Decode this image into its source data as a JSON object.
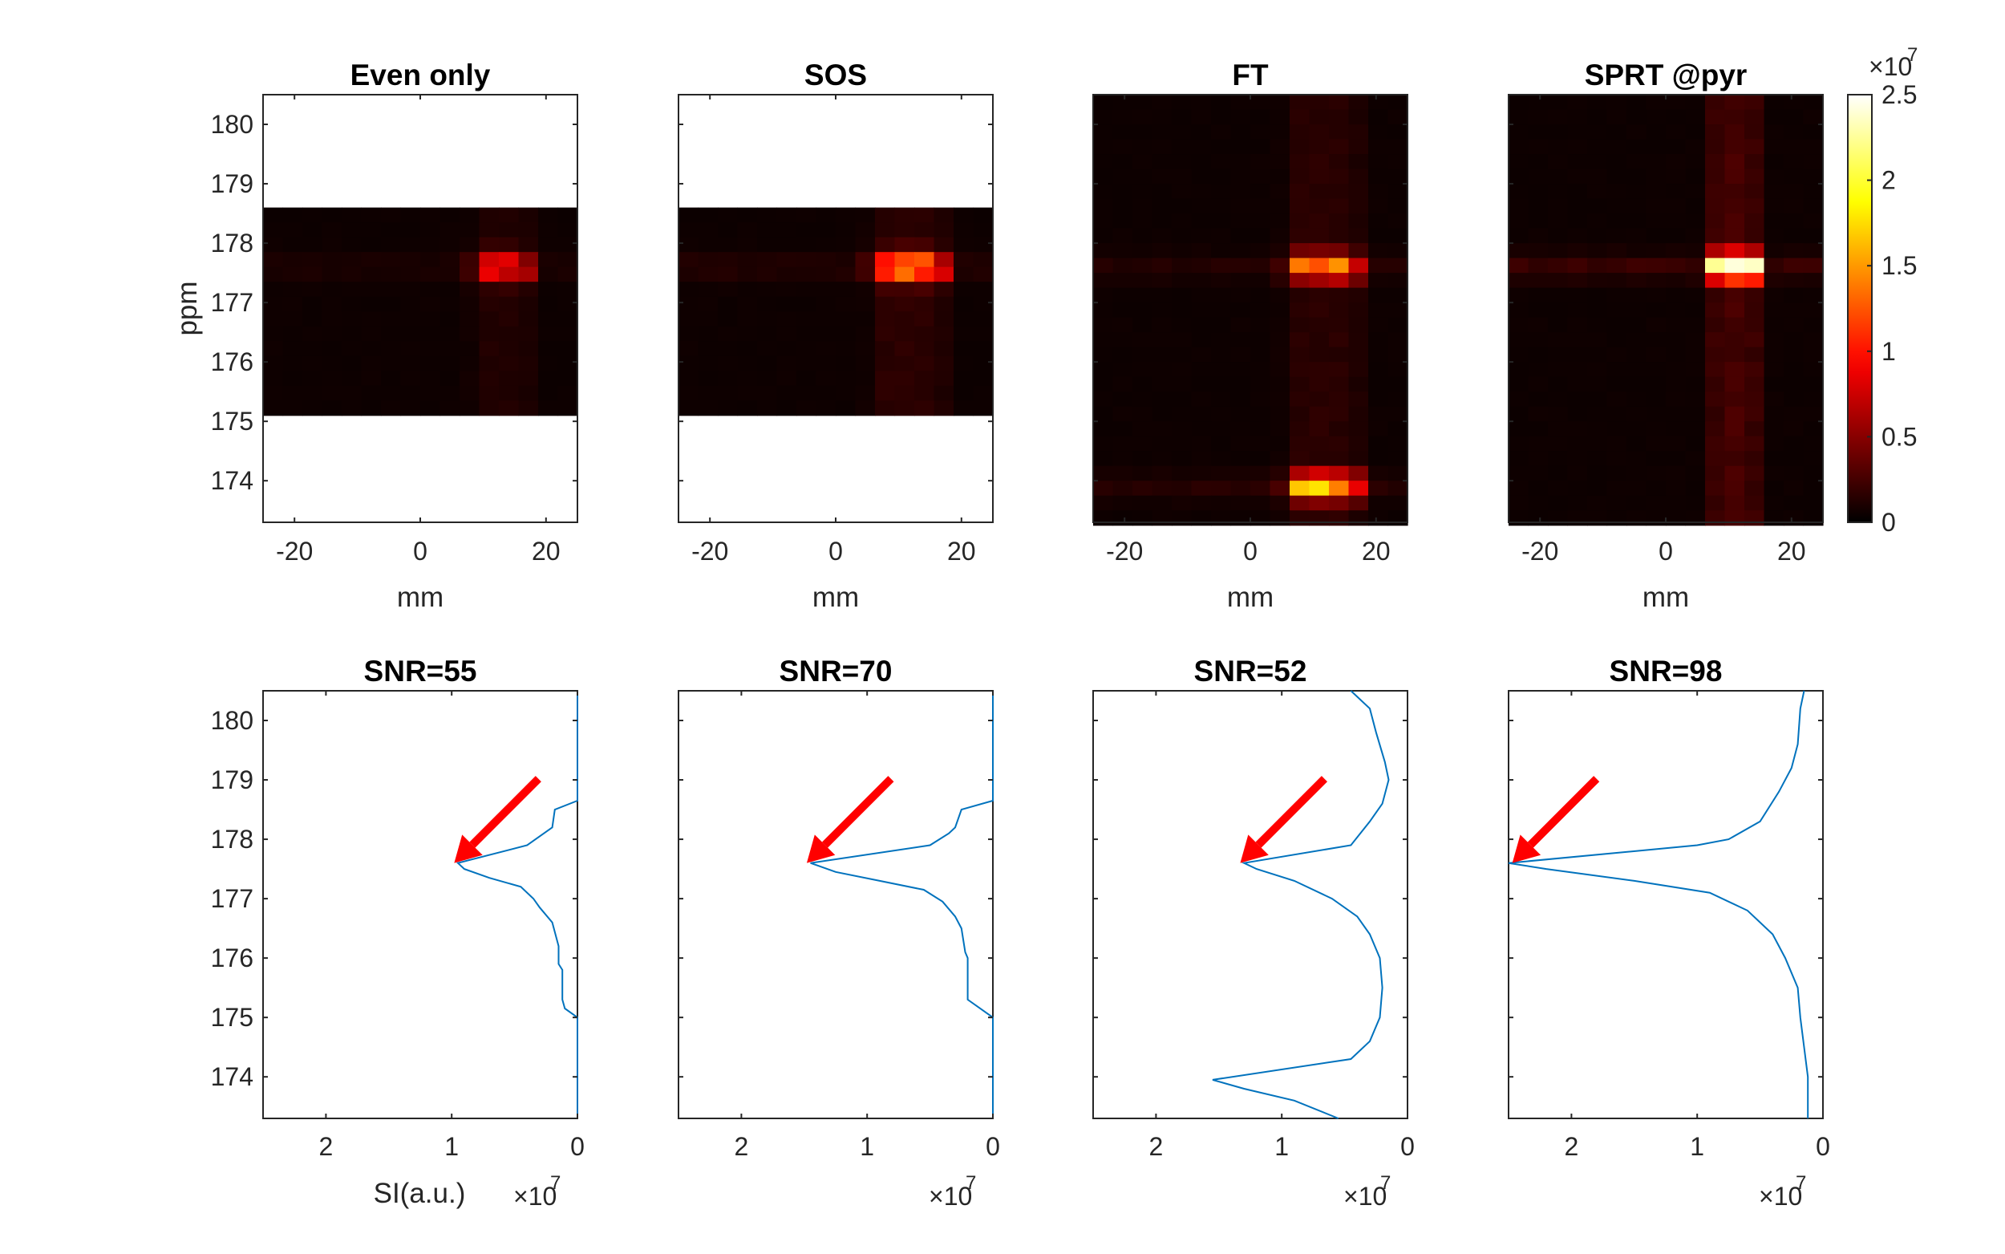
{
  "chart_data": [
    {
      "type": "heatmap",
      "title": "Even only",
      "xlabel": "mm",
      "ylabel": "ppm",
      "xlim": [
        -25,
        25
      ],
      "ylim": [
        173.3,
        180.5
      ],
      "x_ticks": [
        "-20",
        "0",
        "20"
      ],
      "y_ticks": [
        "174",
        "175",
        "176",
        "177",
        "178",
        "179",
        "180"
      ],
      "data_ppm_range": [
        175.1,
        178.6
      ],
      "peak": {
        "x_mm": [
          10,
          16
        ],
        "ppm": 177.6,
        "value": 9000000
      },
      "colormap": "hot"
    },
    {
      "type": "heatmap",
      "title": "SOS",
      "xlabel": "mm",
      "xlim": [
        -25,
        25
      ],
      "ylim": [
        173.3,
        180.5
      ],
      "x_ticks": [
        "-20",
        "0",
        "20"
      ],
      "data_ppm_range": [
        175.1,
        178.6
      ],
      "peak": {
        "x_mm": [
          7,
          16
        ],
        "ppm": 177.6,
        "value": 14000000
      },
      "colormap": "hot"
    },
    {
      "type": "heatmap",
      "title": "FT",
      "xlabel": "mm",
      "xlim": [
        -25,
        25
      ],
      "ylim": [
        173.3,
        180.5
      ],
      "x_ticks": [
        "-20",
        "0",
        "20"
      ],
      "data_ppm_range": [
        173.3,
        180.5
      ],
      "peak": {
        "x_mm": [
          7,
          16
        ],
        "ppm": 177.6,
        "value": 12500000
      },
      "secondary_peak": {
        "ppm": 173.9,
        "value": 15000000
      },
      "colormap": "hot"
    },
    {
      "type": "heatmap",
      "title": "SPRT @pyr",
      "xlabel": "mm",
      "xlim": [
        -25,
        25
      ],
      "ylim": [
        173.3,
        180.5
      ],
      "x_ticks": [
        "-20",
        "0",
        "20"
      ],
      "data_ppm_range": [
        173.3,
        180.5
      ],
      "peak": {
        "x_mm": [
          9,
          13
        ],
        "ppm": 177.6,
        "value": 25000000
      },
      "colormap": "hot"
    },
    {
      "type": "colorbar",
      "clim": [
        0,
        25000000
      ],
      "ticks": [
        "0",
        "0.5",
        "1",
        "1.5",
        "2",
        "2.5"
      ],
      "exponent_base": "×10",
      "exponent_power": "7"
    },
    {
      "type": "line",
      "title": "SNR=55",
      "xlabel": "SI(a.u.)",
      "ylabel": "",
      "x_reversed": true,
      "xlim": [
        0,
        2.5
      ],
      "ylim": [
        173.3,
        180.5
      ],
      "x_ticks": [
        "2",
        "1",
        "0"
      ],
      "y_ticks": [
        "174",
        "175",
        "176",
        "177",
        "178",
        "179",
        "180"
      ],
      "x_exponent": "×10",
      "x_exponent_power": "7",
      "points": [
        [
          0,
          180.5
        ],
        [
          0,
          178.65
        ],
        [
          0.18,
          178.5
        ],
        [
          0.2,
          178.2
        ],
        [
          0.4,
          177.9
        ],
        [
          0.95,
          177.6
        ],
        [
          0.9,
          177.5
        ],
        [
          0.7,
          177.35
        ],
        [
          0.45,
          177.2
        ],
        [
          0.35,
          177.0
        ],
        [
          0.3,
          176.85
        ],
        [
          0.2,
          176.6
        ],
        [
          0.15,
          176.2
        ],
        [
          0.15,
          175.9
        ],
        [
          0.12,
          175.8
        ],
        [
          0.12,
          175.3
        ],
        [
          0.1,
          175.15
        ],
        [
          0,
          175.0
        ],
        [
          0,
          173.3
        ]
      ],
      "arrow_target": {
        "si": 0.98,
        "ppm": 177.6
      }
    },
    {
      "type": "line",
      "title": "SNR=70",
      "xlabel": "",
      "x_reversed": true,
      "xlim": [
        0,
        2.5
      ],
      "ylim": [
        173.3,
        180.5
      ],
      "x_ticks": [
        "2",
        "1",
        "0"
      ],
      "x_exponent": "×10",
      "x_exponent_power": "7",
      "points": [
        [
          0,
          180.5
        ],
        [
          0,
          178.65
        ],
        [
          0.25,
          178.5
        ],
        [
          0.3,
          178.2
        ],
        [
          0.35,
          178.1
        ],
        [
          0.5,
          177.9
        ],
        [
          1.45,
          177.6
        ],
        [
          1.25,
          177.45
        ],
        [
          0.9,
          177.3
        ],
        [
          0.55,
          177.15
        ],
        [
          0.4,
          176.95
        ],
        [
          0.3,
          176.7
        ],
        [
          0.25,
          176.5
        ],
        [
          0.22,
          176.1
        ],
        [
          0.2,
          176.0
        ],
        [
          0.2,
          175.3
        ],
        [
          0,
          175.0
        ],
        [
          0,
          173.3
        ]
      ],
      "arrow_target": {
        "si": 1.48,
        "ppm": 177.6
      }
    },
    {
      "type": "line",
      "title": "SNR=52",
      "xlabel": "",
      "x_reversed": true,
      "xlim": [
        0,
        2.5
      ],
      "ylim": [
        173.3,
        180.5
      ],
      "x_ticks": [
        "2",
        "1",
        "0"
      ],
      "x_exponent": "×10",
      "x_exponent_power": "7",
      "points": [
        [
          0.45,
          180.5
        ],
        [
          0.3,
          180.2
        ],
        [
          0.25,
          179.8
        ],
        [
          0.18,
          179.3
        ],
        [
          0.15,
          179.0
        ],
        [
          0.2,
          178.6
        ],
        [
          0.3,
          178.3
        ],
        [
          0.45,
          177.9
        ],
        [
          1.3,
          177.6
        ],
        [
          1.2,
          177.5
        ],
        [
          0.9,
          177.3
        ],
        [
          0.6,
          177.0
        ],
        [
          0.4,
          176.7
        ],
        [
          0.3,
          176.4
        ],
        [
          0.22,
          176.0
        ],
        [
          0.2,
          175.5
        ],
        [
          0.22,
          175.0
        ],
        [
          0.3,
          174.6
        ],
        [
          0.45,
          174.3
        ],
        [
          1.55,
          173.95
        ],
        [
          1.3,
          173.8
        ],
        [
          0.9,
          173.6
        ],
        [
          0.55,
          173.3
        ]
      ],
      "arrow_target": {
        "si": 1.33,
        "ppm": 177.6
      }
    },
    {
      "type": "line",
      "title": "SNR=98",
      "xlabel": "",
      "x_reversed": true,
      "xlim": [
        0,
        2.5
      ],
      "ylim": [
        173.3,
        180.5
      ],
      "x_ticks": [
        "2",
        "1",
        "0"
      ],
      "x_exponent": "×10",
      "x_exponent_power": "7",
      "points": [
        [
          0.15,
          180.5
        ],
        [
          0.18,
          180.2
        ],
        [
          0.2,
          179.6
        ],
        [
          0.25,
          179.2
        ],
        [
          0.35,
          178.8
        ],
        [
          0.5,
          178.3
        ],
        [
          0.75,
          178.0
        ],
        [
          1.0,
          177.9
        ],
        [
          2.5,
          177.6
        ],
        [
          2.2,
          177.5
        ],
        [
          1.5,
          177.3
        ],
        [
          0.9,
          177.1
        ],
        [
          0.6,
          176.8
        ],
        [
          0.4,
          176.4
        ],
        [
          0.3,
          176.0
        ],
        [
          0.2,
          175.5
        ],
        [
          0.18,
          175.0
        ],
        [
          0.15,
          174.5
        ],
        [
          0.12,
          174.0
        ],
        [
          0.12,
          173.3
        ]
      ],
      "arrow_target": {
        "si": 2.47,
        "ppm": 177.6
      }
    }
  ]
}
